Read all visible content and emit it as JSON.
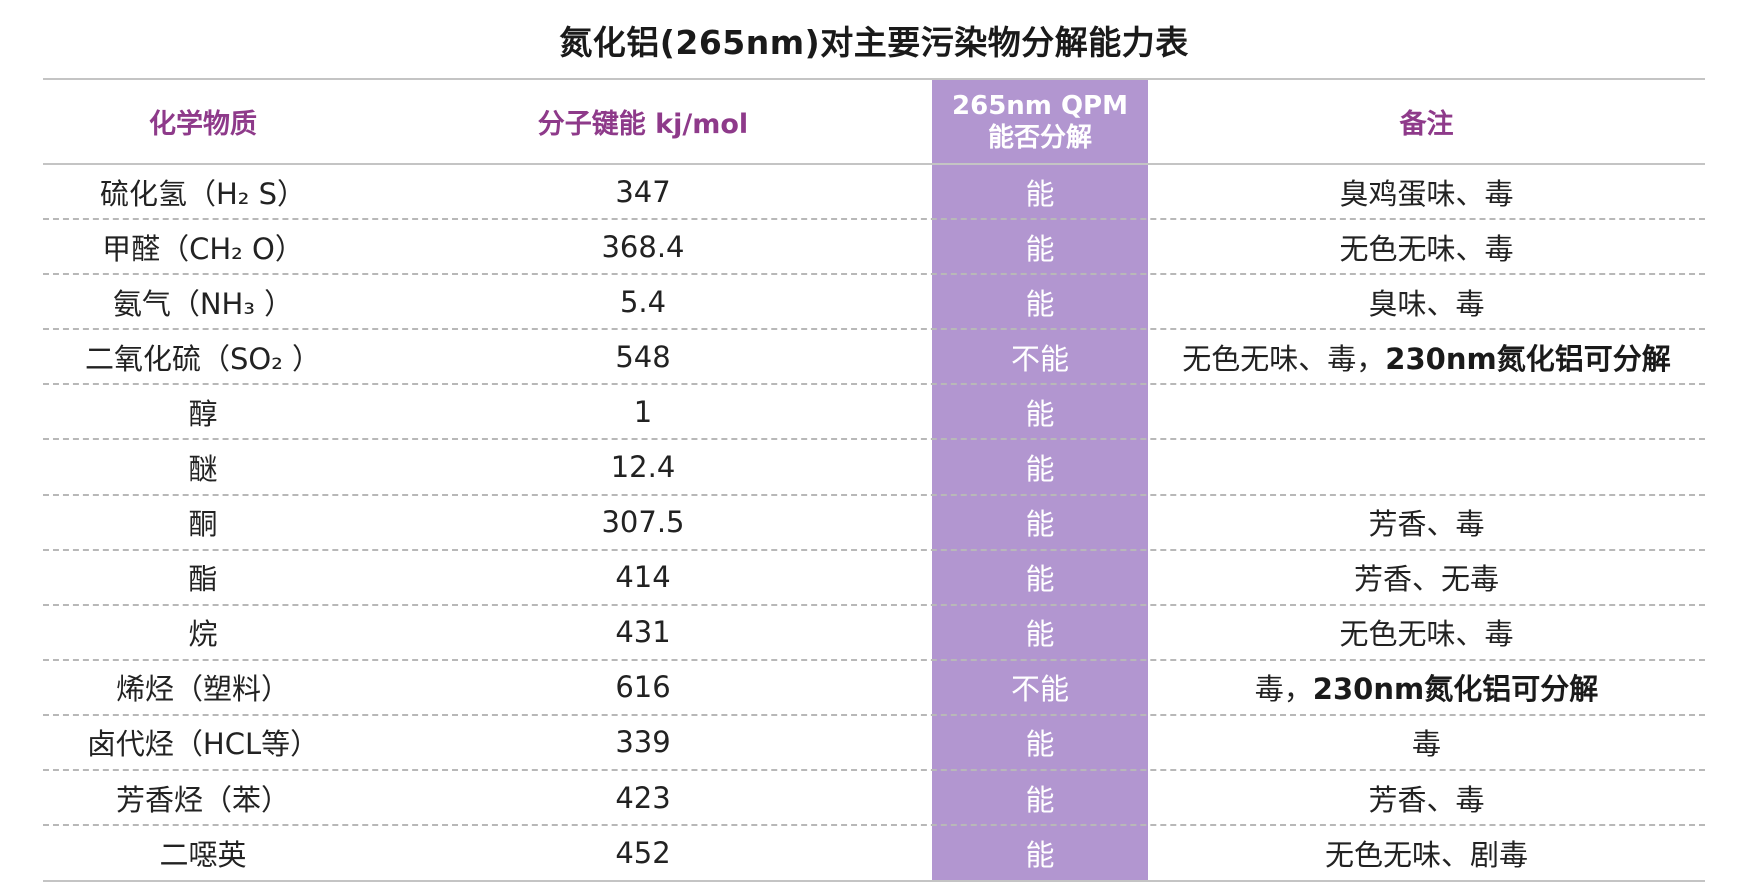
{
  "title": "氮化铝(265nm)对主要污染物分解能力表",
  "headers": {
    "substance": "化学物质",
    "bond_energy": "分子键能 kj/mol",
    "qpm_line1": "265nm QPM",
    "qpm_line2": "能否分解",
    "note": "备注"
  },
  "rows": [
    {
      "substance": "硫化氢（H₂  S）",
      "energy": "347",
      "decompose": "能",
      "note": "臭鸡蛋味、毒",
      "note_bold": ""
    },
    {
      "substance": "甲醛（CH₂  O）",
      "energy": "368.4",
      "decompose": "能",
      "note": "无色无味、毒",
      "note_bold": ""
    },
    {
      "substance": "氨气（NH₃  ）",
      "energy": "5.4",
      "decompose": "能",
      "note": "臭味、毒",
      "note_bold": ""
    },
    {
      "substance": "二氧化硫（SO₂  ）",
      "energy": "548",
      "decompose": "不能",
      "note": "无色无味、毒，",
      "note_bold": "230nm氮化铝可分解"
    },
    {
      "substance": "醇",
      "energy": "1",
      "decompose": "能",
      "note": "",
      "note_bold": ""
    },
    {
      "substance": "醚",
      "energy": "12.4",
      "decompose": "能",
      "note": "",
      "note_bold": ""
    },
    {
      "substance": "酮",
      "energy": "307.5",
      "decompose": "能",
      "note": "芳香、毒",
      "note_bold": ""
    },
    {
      "substance": "酯",
      "energy": "414",
      "decompose": "能",
      "note": "芳香、无毒",
      "note_bold": ""
    },
    {
      "substance": "烷",
      "energy": "431",
      "decompose": "能",
      "note": "无色无味、毒",
      "note_bold": ""
    },
    {
      "substance": "烯烃（塑料）",
      "energy": "616",
      "decompose": "不能",
      "note": "毒，",
      "note_bold": "230nm氮化铝可分解"
    },
    {
      "substance": "卤代烃（HCL等）",
      "energy": "339",
      "decompose": "能",
      "note": "毒",
      "note_bold": ""
    },
    {
      "substance": "芳香烃（苯）",
      "energy": "423",
      "decompose": "能",
      "note": "芳香、毒",
      "note_bold": ""
    },
    {
      "substance": "二噁英",
      "energy": "452",
      "decompose": "能",
      "note": "无色无味、剧毒",
      "note_bold": ""
    }
  ],
  "colors": {
    "header_text": "#8e3a8a",
    "highlight_column": "#b296d0",
    "rule": "#c4c4c4"
  }
}
